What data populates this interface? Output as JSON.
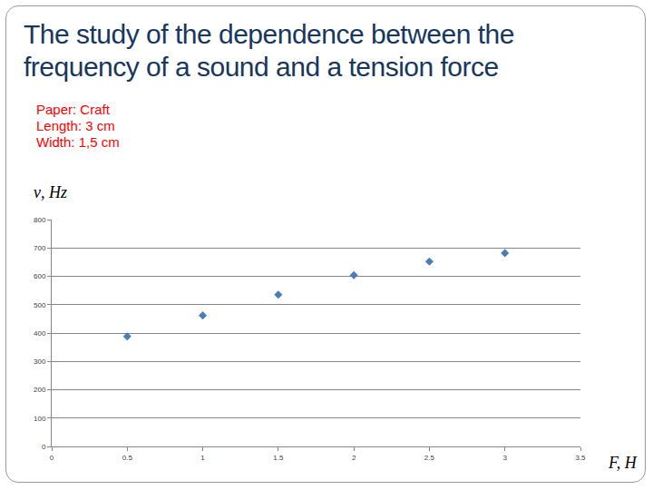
{
  "chart_data": {
    "type": "scatter",
    "title": "The study of the dependence between the frequency of a sound and a tension force",
    "annotations": [
      "Paper: Craft",
      "Length: 3 cm",
      "Width: 1,5 cm"
    ],
    "x_label": "F, H",
    "y_label": "ν, Hz",
    "x": [
      0.5,
      1,
      1.5,
      2,
      2.5,
      3
    ],
    "values": [
      388,
      462,
      535,
      604,
      652,
      682
    ],
    "color": "#4a7ebb",
    "marker": "diamond",
    "xlim": [
      0,
      3.5
    ],
    "xticks": [
      0,
      0.5,
      1,
      1.5,
      2,
      2.5,
      3,
      3.5
    ],
    "ylim": [
      0,
      800
    ],
    "yticks": [
      0,
      100,
      200,
      300,
      400,
      500,
      600,
      700,
      800
    ],
    "grid": true
  }
}
